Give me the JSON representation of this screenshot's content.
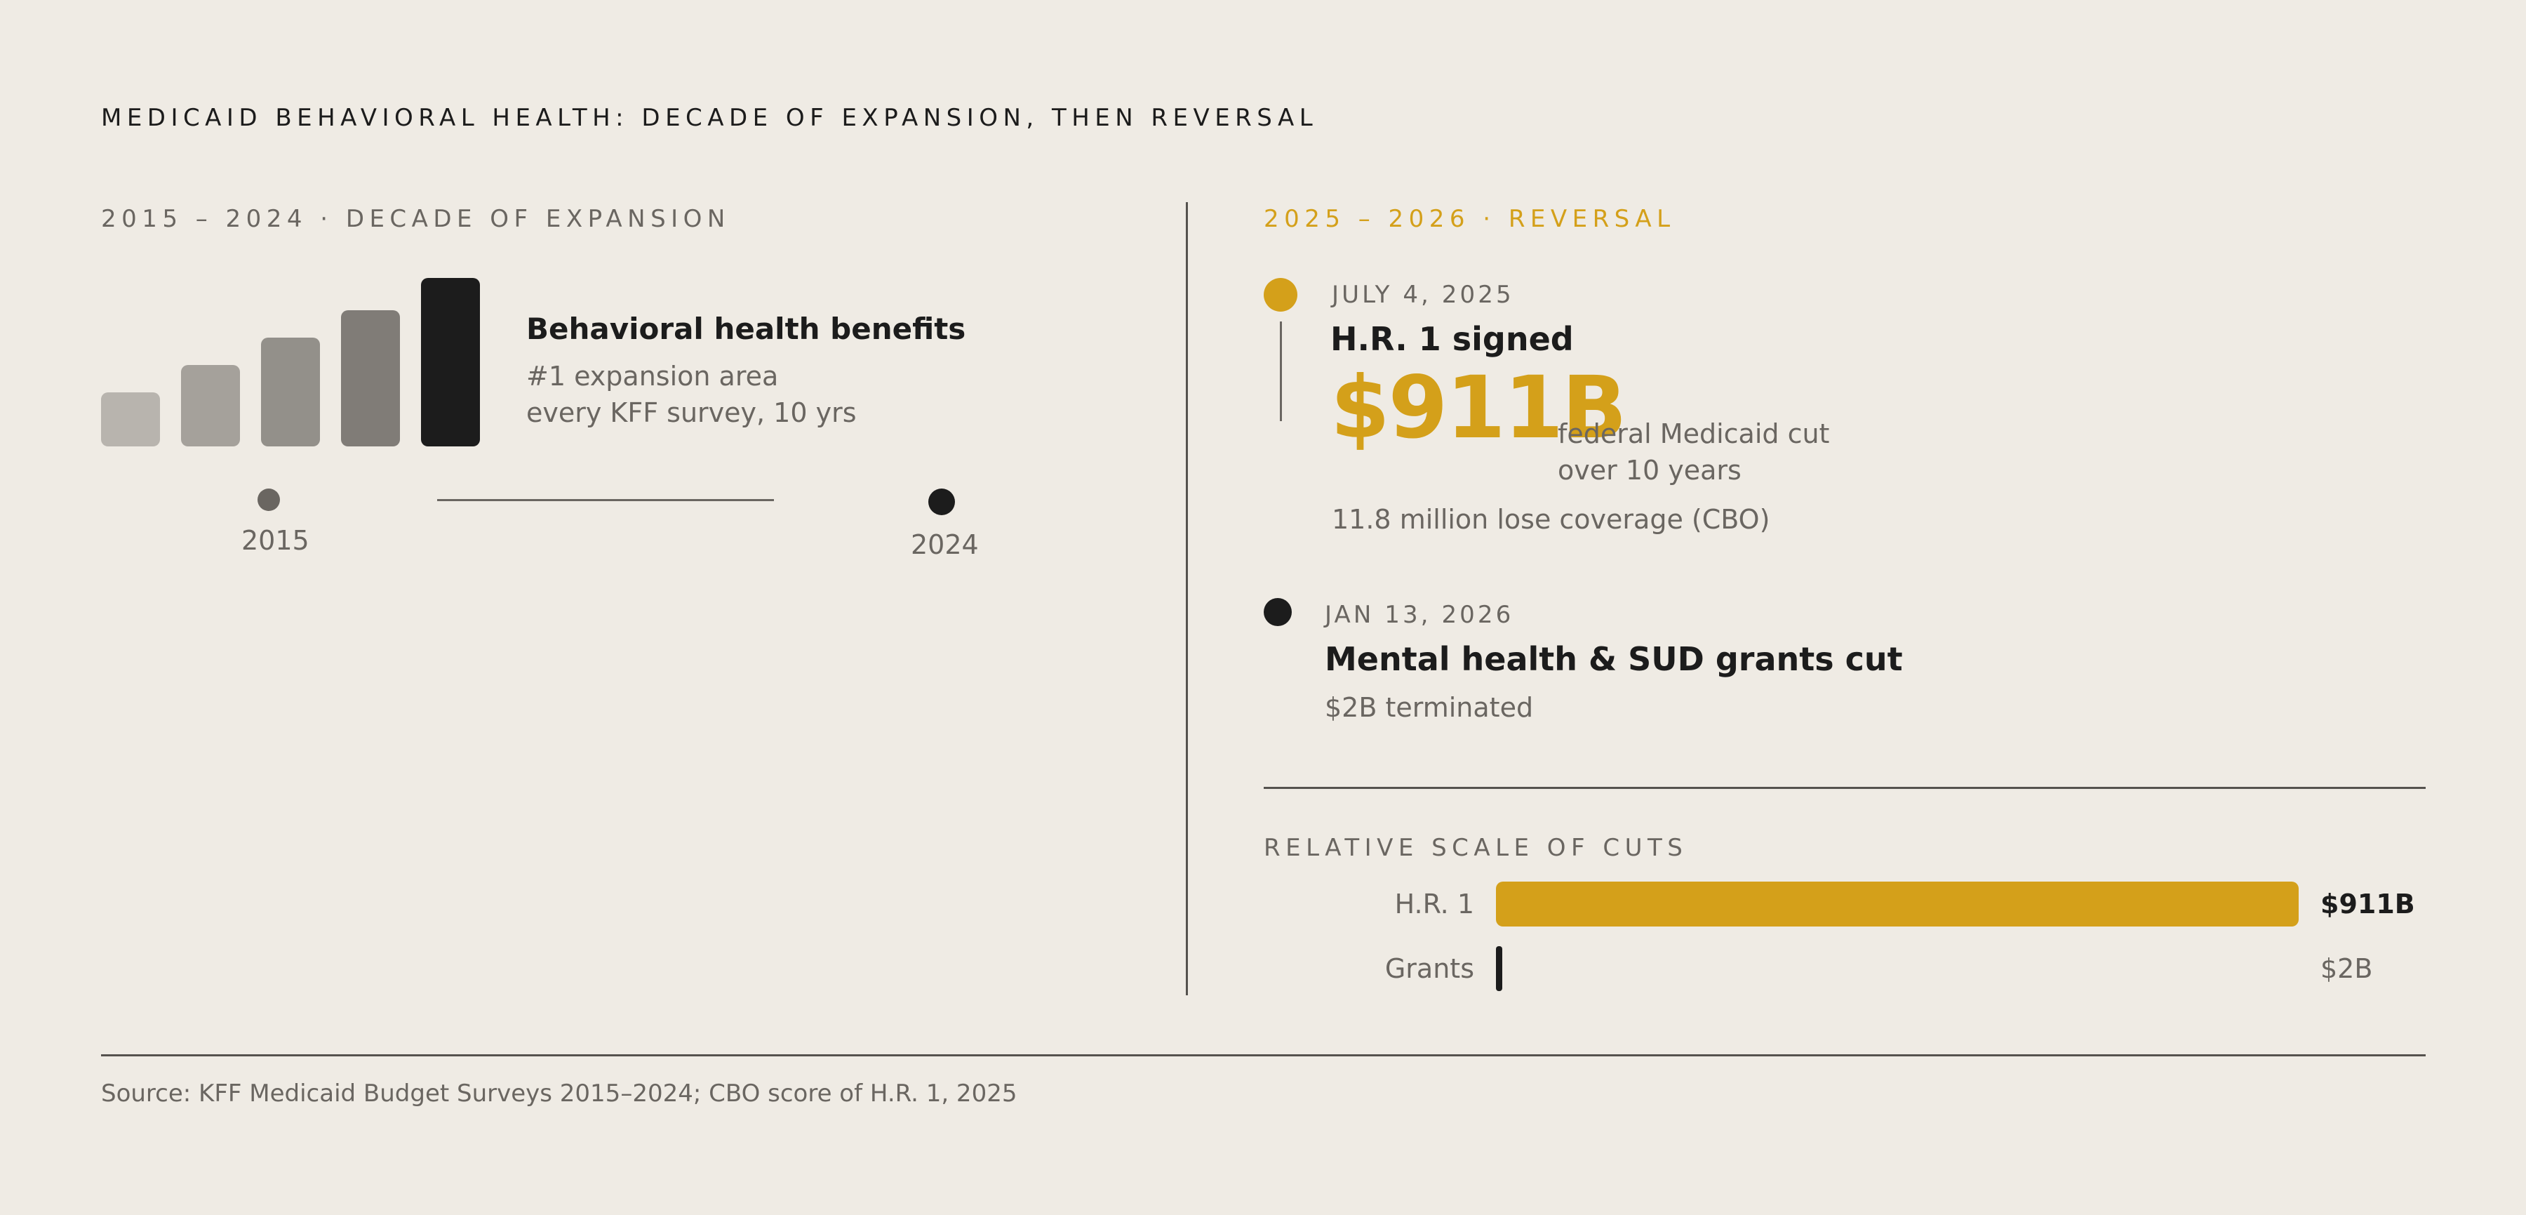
{
  "title": "MEDICAID BEHAVIORAL HEALTH: DECADE OF EXPANSION, THEN REVERSAL",
  "left": {
    "heading": "2015 – 2024 · DECADE OF EXPANSION",
    "benefit_title": "Behavioral health benefits",
    "benefit_line1": "#1 expansion area",
    "benefit_line2": "every KFF survey, 10 yrs",
    "year_start": "2015",
    "year_end": "2024"
  },
  "right": {
    "heading": "2025 – 2026 · REVERSAL",
    "event1": {
      "date": "JULY 4, 2025",
      "title": "H.R. 1 signed",
      "amount": "$911B",
      "amount_desc_line1": "federal Medicaid cut",
      "amount_desc_line2": "over 10 years",
      "note": "11.8 million lose coverage (CBO)"
    },
    "event2": {
      "date": "JAN 13, 2026",
      "title": "Mental health & SUD grants cut",
      "note": "$2B terminated"
    },
    "scale_heading": "RELATIVE SCALE OF CUTS"
  },
  "source": "Source: KFF Medicaid Budget Surveys 2015–2024; CBO score of H.R. 1, 2025",
  "colors": {
    "accent": "#d4a01a",
    "dark": "#1c1c1c",
    "muted": "#6a6661",
    "background": "#efebe4"
  },
  "chart_data": [
    {
      "type": "bar",
      "description_visible": "expansion trend bars",
      "categories": [
        "",
        "",
        "",
        "",
        ""
      ],
      "values": [
        1,
        1.5,
        2,
        2.5,
        3.1
      ],
      "colors": [
        "#b8b4ae",
        "#a5a19b",
        "#93908a",
        "#807c77",
        "#1c1c1c"
      ]
    },
    {
      "type": "bar",
      "orientation": "horizontal",
      "categories": [
        "H.R. 1",
        "Grants"
      ],
      "values": [
        911,
        2
      ],
      "value_labels": [
        "$911B",
        "$2B"
      ],
      "unit": "billion USD",
      "colors": [
        "#d4a01a",
        "#1c1c1c"
      ]
    }
  ]
}
